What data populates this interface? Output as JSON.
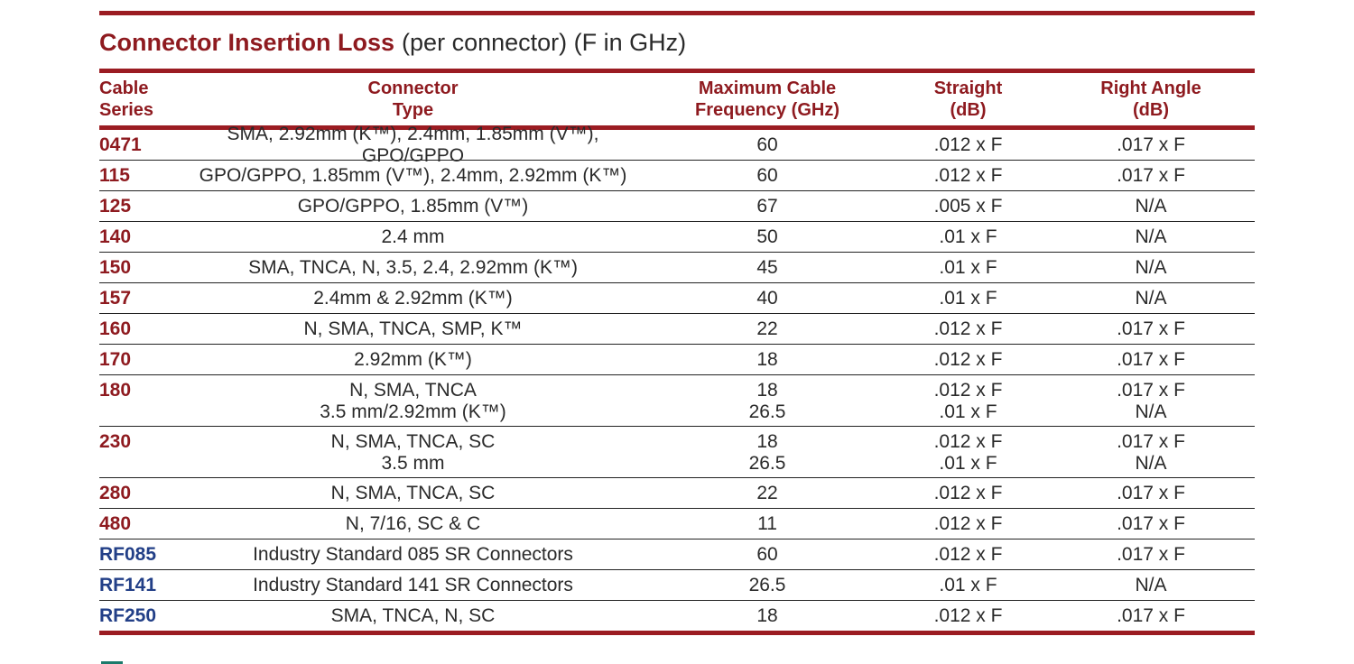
{
  "title": {
    "bold": "Connector Insertion Loss",
    "rest": "(per connector) (F in GHz)"
  },
  "headers": {
    "series": [
      "Cable",
      "Series"
    ],
    "type": [
      "Connector",
      "Type"
    ],
    "freq": [
      "Maximum Cable",
      "Frequency (GHz)"
    ],
    "straight": [
      "Straight",
      "(dB)"
    ],
    "right": [
      "Right Angle",
      "(dB)"
    ]
  },
  "rows": [
    {
      "series": "0471",
      "type": [
        "SMA, 2.92mm (K™), 2.4mm, 1.85mm (V™), GPO/GPPO"
      ],
      "freq": [
        "60"
      ],
      "straight": [
        ".012 x F"
      ],
      "right": [
        ".017 x F"
      ]
    },
    {
      "series": "115",
      "type": [
        "GPO/GPPO, 1.85mm (V™), 2.4mm, 2.92mm (K™)"
      ],
      "freq": [
        "60"
      ],
      "straight": [
        ".012 x F"
      ],
      "right": [
        ".017 x F"
      ]
    },
    {
      "series": "125",
      "type": [
        "GPO/GPPO, 1.85mm (V™)"
      ],
      "freq": [
        "67"
      ],
      "straight": [
        ".005 x F"
      ],
      "right": [
        "N/A"
      ]
    },
    {
      "series": "140",
      "type": [
        "2.4 mm"
      ],
      "freq": [
        "50"
      ],
      "straight": [
        ".01 x F"
      ],
      "right": [
        "N/A"
      ]
    },
    {
      "series": "150",
      "type": [
        "SMA, TNCA, N, 3.5, 2.4, 2.92mm (K™)"
      ],
      "freq": [
        "45"
      ],
      "straight": [
        ".01 x F"
      ],
      "right": [
        "N/A"
      ]
    },
    {
      "series": "157",
      "type": [
        "2.4mm & 2.92mm (K™)"
      ],
      "freq": [
        "40"
      ],
      "straight": [
        ".01 x F"
      ],
      "right": [
        "N/A"
      ]
    },
    {
      "series": "160",
      "type": [
        "N, SMA, TNCA, SMP, K™"
      ],
      "freq": [
        "22"
      ],
      "straight": [
        ".012 x F"
      ],
      "right": [
        ".017 x F"
      ]
    },
    {
      "series": "170",
      "type": [
        "2.92mm (K™)"
      ],
      "freq": [
        "18"
      ],
      "straight": [
        ".012 x F"
      ],
      "right": [
        ".017 x F"
      ]
    },
    {
      "series": "180",
      "type": [
        "N, SMA, TNCA",
        "3.5 mm/2.92mm (K™)"
      ],
      "freq": [
        "18",
        "26.5"
      ],
      "straight": [
        ".012 x F",
        ".01 x F"
      ],
      "right": [
        ".017 x F",
        "N/A"
      ]
    },
    {
      "series": "230",
      "type": [
        "N, SMA, TNCA, SC",
        "3.5 mm"
      ],
      "freq": [
        "18",
        "26.5"
      ],
      "straight": [
        ".012 x F",
        ".01 x F"
      ],
      "right": [
        ".017 x F",
        "N/A"
      ]
    },
    {
      "series": "280",
      "type": [
        "N, SMA, TNCA, SC"
      ],
      "freq": [
        "22"
      ],
      "straight": [
        ".012 x F"
      ],
      "right": [
        ".017 x F"
      ]
    },
    {
      "series": "480",
      "type": [
        "N, 7/16, SC & C"
      ],
      "freq": [
        "11"
      ],
      "straight": [
        ".012 x F"
      ],
      "right": [
        ".017 x F"
      ]
    },
    {
      "series": "RF085",
      "type": [
        "Industry Standard 085 SR Connectors"
      ],
      "freq": [
        "60"
      ],
      "straight": [
        ".012 x F"
      ],
      "right": [
        ".017 x F"
      ],
      "blue": true
    },
    {
      "series": "RF141",
      "type": [
        "Industry Standard 141 SR Connectors"
      ],
      "freq": [
        "26.5"
      ],
      "straight": [
        ".01 x F"
      ],
      "right": [
        "N/A"
      ],
      "blue": true
    },
    {
      "series": "RF250",
      "type": [
        "SMA, TNCA, N, SC"
      ],
      "freq": [
        "18"
      ],
      "straight": [
        ".012 x F"
      ],
      "right": [
        ".017 x F"
      ],
      "blue": true
    }
  ],
  "colors": {
    "accent": "#9b1c22",
    "series_blue": "#223f87"
  }
}
